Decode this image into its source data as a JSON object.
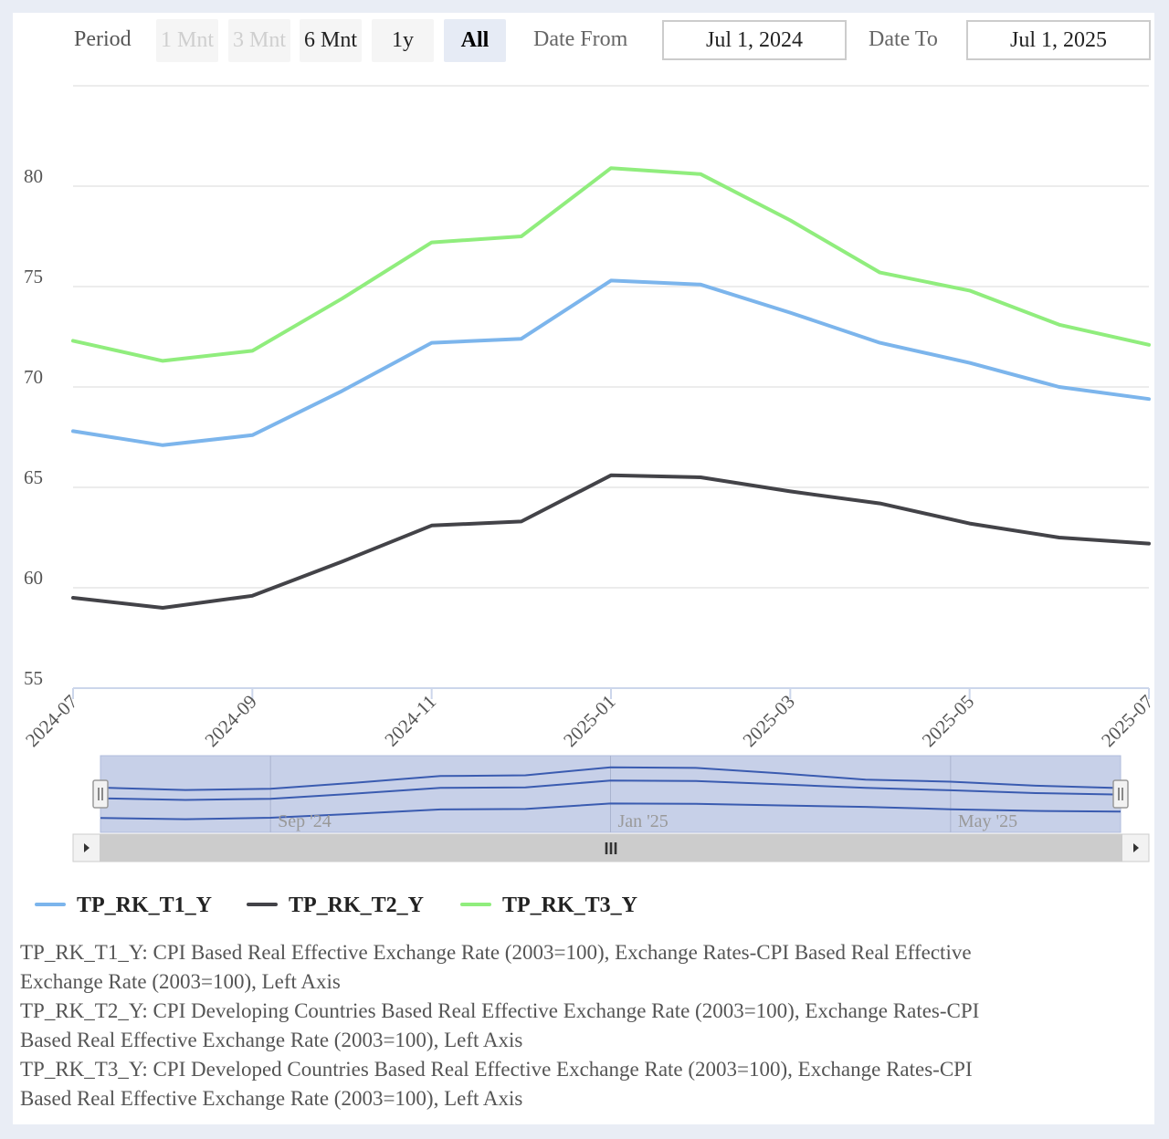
{
  "toolbar": {
    "period_label": "Period",
    "buttons": [
      {
        "label": "1 Mnt",
        "state": "disabled"
      },
      {
        "label": "3 Mnt",
        "state": "disabled"
      },
      {
        "label": "6 Mnt",
        "state": "normal"
      },
      {
        "label": "1y",
        "state": "normal"
      },
      {
        "label": "All",
        "state": "active"
      }
    ],
    "date_from_label": "Date From",
    "date_from_value": "Jul 1, 2024",
    "date_to_label": "Date To",
    "date_to_value": "Jul 1, 2025"
  },
  "chart_data": {
    "type": "line",
    "x": [
      "2024-07",
      "2024-08",
      "2024-09",
      "2024-10",
      "2024-11",
      "2024-12",
      "2025-01",
      "2025-02",
      "2025-03",
      "2025-04",
      "2025-05",
      "2025-06",
      "2025-07"
    ],
    "x_tick_labels": [
      "2024-07",
      "2024-09",
      "2024-11",
      "2025-01",
      "2025-03",
      "2025-05",
      "2025-07"
    ],
    "y_ticks": [
      55,
      60,
      65,
      70,
      75,
      80
    ],
    "ylim": [
      55,
      85
    ],
    "grid": true,
    "series": [
      {
        "name": "TP_RK_T1_Y",
        "color": "#7cb5ec",
        "values": [
          67.8,
          67.1,
          67.6,
          69.8,
          72.2,
          72.4,
          75.3,
          75.1,
          73.7,
          72.2,
          71.2,
          70.0,
          69.4
        ]
      },
      {
        "name": "TP_RK_T2_Y",
        "color": "#434348",
        "values": [
          59.5,
          59.0,
          59.6,
          61.3,
          63.1,
          63.3,
          65.6,
          65.5,
          64.8,
          64.2,
          63.2,
          62.5,
          62.2
        ]
      },
      {
        "name": "TP_RK_T3_Y",
        "color": "#90ed7d",
        "values": [
          72.3,
          71.3,
          71.8,
          74.4,
          77.2,
          77.5,
          80.9,
          80.6,
          78.3,
          75.7,
          74.8,
          73.1,
          72.1
        ]
      }
    ],
    "legend_position": "bottom-left",
    "navigator": {
      "labels": [
        "Sep '24",
        "Jan '25",
        "May '25"
      ],
      "scroll_label": "III"
    }
  },
  "descriptions": [
    "TP_RK_T1_Y: CPI Based Real Effective Exchange Rate (2003=100), Exchange Rates-CPI Based Real Effective Exchange Rate (2003=100), Left Axis",
    "TP_RK_T2_Y: CPI Developing Countries Based Real Effective Exchange Rate (2003=100), Exchange Rates-CPI Based Real Effective Exchange Rate (2003=100), Left Axis",
    "TP_RK_T3_Y: CPI Developed Countries Based Real Effective Exchange Rate (2003=100), Exchange Rates-CPI Based Real Effective Exchange Rate (2003=100), Left Axis"
  ]
}
